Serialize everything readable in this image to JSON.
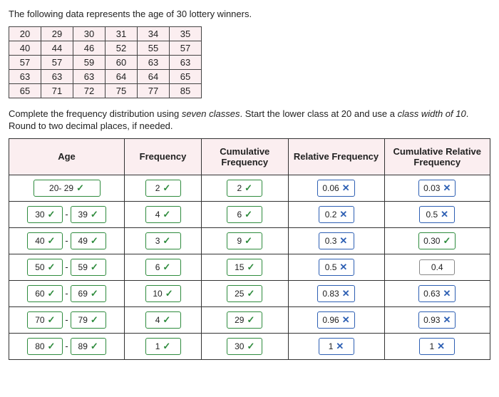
{
  "prompt": "The following data represents the age of 30 lottery winners.",
  "data_rows": [
    [
      "20",
      "29",
      "30",
      "31",
      "34",
      "35"
    ],
    [
      "40",
      "44",
      "46",
      "52",
      "55",
      "57"
    ],
    [
      "57",
      "57",
      "59",
      "60",
      "63",
      "63"
    ],
    [
      "63",
      "63",
      "63",
      "64",
      "64",
      "65"
    ],
    [
      "65",
      "71",
      "72",
      "75",
      "77",
      "85"
    ]
  ],
  "instr_a": "Complete the frequency distribution using ",
  "instr_b": "seven classes",
  "instr_c": ". Start the lower class at 20 and use a ",
  "instr_d": "class width of 10",
  "instr_e": ". Round to two decimal places, if needed.",
  "headers": {
    "age": "Age",
    "freq": "Frequency",
    "cum": "Cumulative Frequency",
    "rel": "Relative Frequency",
    "crel": "Cumulative Relative Frequency"
  },
  "rows": [
    {
      "lo": "20",
      "lo_s": "plain",
      "hi": "29",
      "hi_s": "ok",
      "joined": true,
      "f": "2",
      "f_s": "ok",
      "c": "2",
      "c_s": "ok",
      "r": "0.06",
      "r_s": "bad",
      "cr": "0.03",
      "cr_s": "bad"
    },
    {
      "lo": "30",
      "lo_s": "ok",
      "hi": "39",
      "hi_s": "ok",
      "f": "4",
      "f_s": "ok",
      "c": "6",
      "c_s": "ok",
      "r": "0.2",
      "r_s": "bad",
      "cr": "0.5",
      "cr_s": "bad"
    },
    {
      "lo": "40",
      "lo_s": "ok",
      "hi": "49",
      "hi_s": "ok",
      "f": "3",
      "f_s": "ok",
      "c": "9",
      "c_s": "ok",
      "r": "0.3",
      "r_s": "bad",
      "cr": "0.30",
      "cr_s": "ok"
    },
    {
      "lo": "50",
      "lo_s": "ok",
      "hi": "59",
      "hi_s": "ok",
      "f": "6",
      "f_s": "ok",
      "c": "15",
      "c_s": "ok",
      "r": "0.5",
      "r_s": "bad",
      "cr": "0.4",
      "cr_s": "plain"
    },
    {
      "lo": "60",
      "lo_s": "ok",
      "hi": "69",
      "hi_s": "ok",
      "f": "10",
      "f_s": "ok",
      "c": "25",
      "c_s": "ok",
      "r": "0.83",
      "r_s": "bad",
      "cr": "0.63",
      "cr_s": "bad"
    },
    {
      "lo": "70",
      "lo_s": "ok",
      "hi": "79",
      "hi_s": "ok",
      "f": "4",
      "f_s": "ok",
      "c": "29",
      "c_s": "ok",
      "r": "0.96",
      "r_s": "bad",
      "cr": "0.93",
      "cr_s": "bad"
    },
    {
      "lo": "80",
      "lo_s": "ok",
      "hi": "89",
      "hi_s": "ok",
      "f": "1",
      "f_s": "ok",
      "c": "30",
      "c_s": "ok",
      "r": "1",
      "r_s": "bad",
      "cr": "1",
      "cr_s": "bad"
    }
  ],
  "glyph_ok": "✓",
  "glyph_bad": "✕",
  "col_widths": {
    "age": "24%",
    "freq": "16%",
    "cum": "18%",
    "rel": "20%",
    "crel": "22%"
  }
}
